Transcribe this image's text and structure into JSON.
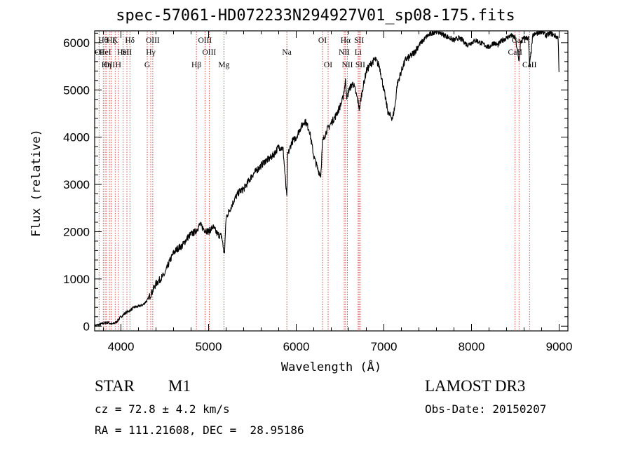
{
  "chart_data": {
    "type": "line",
    "title": "spec-57061-HD072233N294927V01_sp08-175.fits",
    "xlabel": "Wavelength (Å)",
    "ylabel": "Flux (relative)",
    "xlim": [
      3700,
      9100
    ],
    "ylim": [
      -100,
      6250
    ],
    "x_ticks": [
      4000,
      5000,
      6000,
      7000,
      8000,
      9000
    ],
    "y_ticks": [
      0,
      1000,
      2000,
      3000,
      4000,
      5000,
      6000
    ],
    "series": [
      {
        "name": "spectrum",
        "x": [
          3700,
          3750,
          3800,
          3850,
          3900,
          3950,
          4000,
          4050,
          4100,
          4150,
          4200,
          4250,
          4300,
          4350,
          4400,
          4450,
          4500,
          4550,
          4600,
          4650,
          4700,
          4750,
          4800,
          4850,
          4900,
          4950,
          5000,
          5050,
          5100,
          5150,
          5180,
          5200,
          5250,
          5300,
          5350,
          5400,
          5450,
          5500,
          5550,
          5600,
          5650,
          5700,
          5750,
          5800,
          5850,
          5893,
          5900,
          5950,
          6000,
          6050,
          6100,
          6150,
          6200,
          6250,
          6280,
          6300,
          6350,
          6400,
          6450,
          6500,
          6530,
          6563,
          6580,
          6600,
          6650,
          6700,
          6720,
          6750,
          6800,
          6850,
          6900,
          6950,
          7000,
          7050,
          7100,
          7130,
          7150,
          7200,
          7250,
          7300,
          7350,
          7400,
          7450,
          7500,
          7550,
          7600,
          7650,
          7700,
          7750,
          7800,
          7850,
          7900,
          7950,
          8000,
          8050,
          8100,
          8150,
          8200,
          8250,
          8300,
          8350,
          8400,
          8450,
          8500,
          8542,
          8560,
          8600,
          8650,
          8662,
          8700,
          8750,
          8800,
          8850,
          8900,
          8950,
          8990,
          9000
        ],
        "y": [
          10,
          30,
          60,
          80,
          40,
          90,
          200,
          280,
          330,
          400,
          420,
          450,
          550,
          700,
          900,
          1000,
          1100,
          1350,
          1550,
          1650,
          1700,
          1850,
          1950,
          2000,
          2150,
          2050,
          2000,
          2100,
          1950,
          1900,
          1500,
          2300,
          2500,
          2700,
          2850,
          2900,
          3050,
          3200,
          3300,
          3400,
          3500,
          3550,
          3650,
          3800,
          3750,
          2700,
          3600,
          3900,
          4000,
          4200,
          4350,
          4150,
          3600,
          3300,
          3200,
          3900,
          4150,
          4300,
          4450,
          4650,
          4800,
          5200,
          4800,
          5000,
          5150,
          4800,
          4600,
          4950,
          5400,
          5550,
          5650,
          5500,
          5000,
          4500,
          4400,
          4700,
          5100,
          5400,
          5650,
          5700,
          5800,
          5950,
          6050,
          6150,
          6200,
          6250,
          6200,
          6150,
          6100,
          6050,
          6100,
          6050,
          5950,
          6000,
          6050,
          6000,
          5950,
          5900,
          6000,
          5950,
          6050,
          6100,
          6150,
          6100,
          5600,
          6000,
          6100,
          6100,
          5500,
          6150,
          6200,
          6250,
          6150,
          6200,
          6150,
          6100,
          5200
        ]
      }
    ],
    "lines": [
      {
        "x": 3750,
        "label": "OI",
        "row": 2
      },
      {
        "x": 3798,
        "label": "Hθ",
        "row": 1
      },
      {
        "x": 3820,
        "label": "HeI",
        "row": 2
      },
      {
        "x": 3835,
        "label": "Hη",
        "row": 3
      },
      {
        "x": 3869,
        "label": "OII",
        "row": 3
      },
      {
        "x": 3889,
        "label": "Hζ",
        "row": 1
      },
      {
        "x": 3934,
        "label": "K",
        "row": 1
      },
      {
        "x": 3970,
        "label": "H",
        "row": 3
      },
      {
        "x": 4026,
        "label": "HeI",
        "row": 2
      },
      {
        "x": 4068,
        "label": "SII",
        "row": 2
      },
      {
        "x": 4102,
        "label": "Hδ",
        "row": 1
      },
      {
        "x": 4300,
        "label": "G",
        "row": 3
      },
      {
        "x": 4340,
        "label": "Hγ",
        "row": 2
      },
      {
        "x": 4363,
        "label": "OIII",
        "row": 1
      },
      {
        "x": 4861,
        "label": "Hβ",
        "row": 3
      },
      {
        "x": 4959,
        "label": "OIII",
        "row": 1
      },
      {
        "x": 5007,
        "label": "OIII",
        "row": 2
      },
      {
        "x": 5175,
        "label": "Mg",
        "row": 3
      },
      {
        "x": 5893,
        "label": "Na",
        "row": 2
      },
      {
        "x": 6300,
        "label": "OI",
        "row": 1
      },
      {
        "x": 6364,
        "label": "OI",
        "row": 3
      },
      {
        "x": 6548,
        "label": "NII",
        "row": 2
      },
      {
        "x": 6563,
        "label": "Hα",
        "row": 1
      },
      {
        "x": 6584,
        "label": "NII",
        "row": 3
      },
      {
        "x": 6707,
        "label": "Li",
        "row": 2
      },
      {
        "x": 6717,
        "label": "SII",
        "row": 1
      },
      {
        "x": 6731,
        "label": "SII",
        "row": 3
      },
      {
        "x": 8498,
        "label": "CaII",
        "row": 2
      },
      {
        "x": 8542,
        "label": "CaII",
        "row": 1
      },
      {
        "x": 8662,
        "label": "CaII",
        "row": 3
      }
    ]
  },
  "info": {
    "object_class": "STAR",
    "subclass": "M1",
    "survey": "LAMOST DR3",
    "redshift": "cz = 72.8 ± 4.2 km/s",
    "obs_date": "Obs-Date: 20150207",
    "coords": "RA = 111.21608, DEC =  28.95186"
  }
}
